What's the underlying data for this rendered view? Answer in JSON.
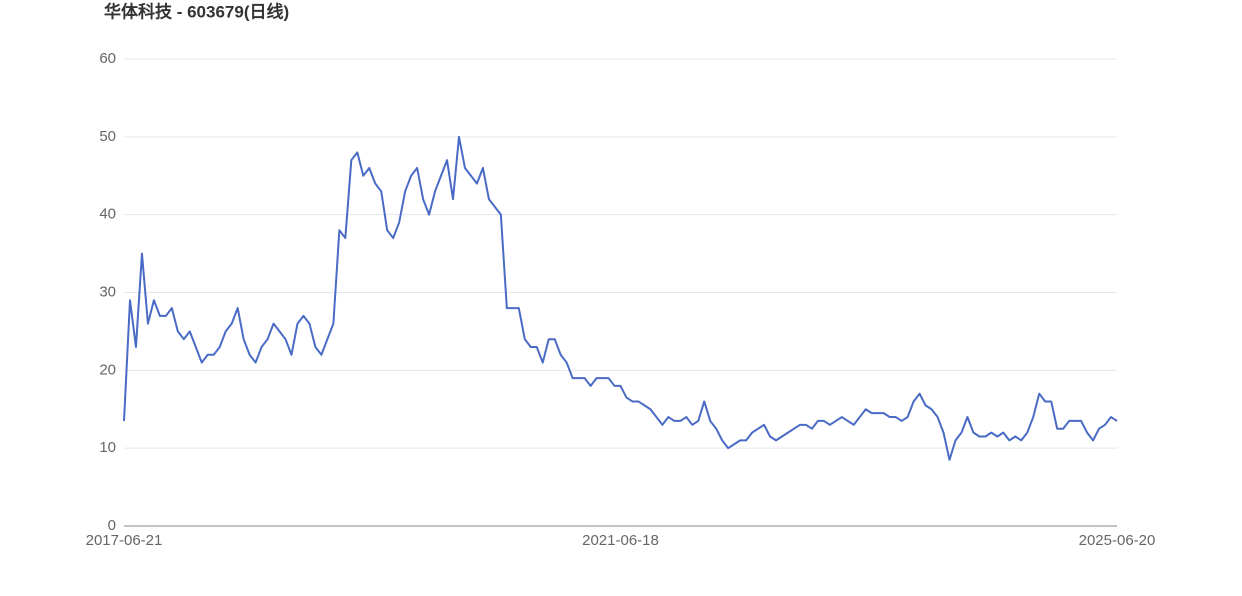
{
  "chart_data": {
    "type": "line",
    "title": "华体科技 - 603679(日线)",
    "categories": [
      "2017-06-21",
      null,
      null,
      null,
      null,
      null,
      null,
      null,
      null,
      null,
      null,
      null,
      null,
      null,
      null,
      null,
      null,
      null,
      null,
      null,
      null,
      null,
      null,
      null,
      null,
      null,
      null,
      null,
      null,
      null,
      null,
      null,
      null,
      null,
      null,
      null,
      null,
      null,
      null,
      null,
      null,
      null,
      null,
      null,
      null,
      null,
      null,
      null,
      null,
      null,
      null,
      null,
      null,
      null,
      null,
      null,
      null,
      null,
      null,
      null,
      null,
      null,
      null,
      null,
      null,
      null,
      null,
      null,
      null,
      null,
      null,
      null,
      null,
      null,
      null,
      null,
      null,
      null,
      null,
      null,
      null,
      null,
      null,
      "2021-06-18",
      null,
      null,
      null,
      null,
      null,
      null,
      null,
      null,
      null,
      null,
      null,
      null,
      null,
      null,
      null,
      null,
      null,
      null,
      null,
      null,
      null,
      null,
      null,
      null,
      null,
      null,
      null,
      null,
      null,
      null,
      null,
      null,
      null,
      null,
      null,
      null,
      null,
      null,
      null,
      null,
      null,
      null,
      null,
      null,
      null,
      null,
      null,
      null,
      null,
      null,
      null,
      null,
      null,
      null,
      null,
      null,
      null,
      null,
      null,
      null,
      null,
      null,
      null,
      null,
      null,
      null,
      null,
      null,
      null,
      null,
      null,
      null,
      null,
      null,
      null,
      null,
      null,
      null,
      null,
      null,
      null,
      null,
      "2025-06-20"
    ],
    "series": [
      {
        "name": "603679",
        "color": "#4a6bc5",
        "values": [
          13.5,
          29,
          23,
          35,
          26,
          29,
          27,
          27,
          28,
          25,
          24,
          25,
          23,
          21,
          22,
          22,
          23,
          25,
          26,
          28,
          24,
          22,
          21,
          23,
          24,
          26,
          25,
          24,
          22,
          26,
          27,
          26,
          23,
          22,
          24,
          26,
          38,
          37,
          47,
          48,
          45,
          46,
          44,
          43,
          38,
          37,
          39,
          43,
          45,
          46,
          42,
          40,
          43,
          45,
          47,
          42,
          50,
          46,
          45,
          44,
          46,
          42,
          41,
          40,
          28,
          28,
          28,
          24,
          23,
          23,
          21,
          24,
          24,
          22,
          21,
          19,
          19,
          19,
          18,
          19,
          19,
          19,
          18,
          18,
          16.5,
          16,
          16,
          15.5,
          15,
          14,
          13,
          14,
          13.5,
          13.5,
          14,
          13,
          13.5,
          16,
          13.5,
          12.5,
          11,
          10,
          10.5,
          11,
          11,
          12,
          12.5,
          13,
          11.5,
          11,
          11.5,
          12,
          12.5,
          13,
          13,
          12.5,
          13.5,
          13.5,
          13,
          13.5,
          14,
          13.5,
          13,
          14,
          15,
          14.5,
          14.5,
          14.5,
          14,
          14,
          13.5,
          14,
          16,
          17,
          15.5,
          15,
          14,
          12,
          8.5,
          11,
          12,
          14,
          12,
          11.5,
          11.5,
          12,
          11.5,
          12,
          11,
          11.5,
          11,
          12,
          14,
          17,
          16,
          16,
          12.5,
          12.5,
          13.5,
          13.5,
          13.5,
          12,
          11,
          12.5,
          13,
          14,
          13.5
        ]
      }
    ],
    "ylim": [
      0,
      60
    ],
    "yticks": [
      0,
      10,
      20,
      30,
      40,
      50,
      60
    ],
    "grid": true
  }
}
